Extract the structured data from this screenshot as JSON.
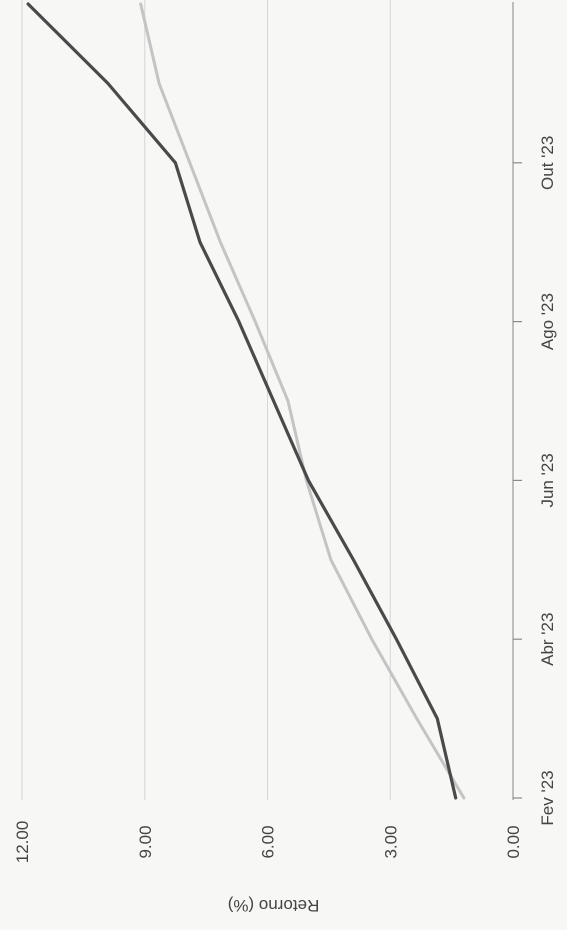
{
  "chart_data": {
    "type": "line",
    "title": "",
    "ylabel": "Retorno (%)",
    "xlabel": "",
    "ylim": [
      0,
      12
    ],
    "yticks": [
      0,
      3,
      6,
      9,
      12
    ],
    "ytick_labels": [
      "0.00",
      "3.00",
      "6.00",
      "9.00",
      "12.00"
    ],
    "xtick_labels": [
      "Fev '23",
      "Abr '23",
      "Jun '23",
      "Ago '23",
      "Out '23"
    ],
    "grid": true,
    "legend": "none",
    "series": [
      {
        "color": "#4a4a4a",
        "points": [
          {
            "month": 0.0,
            "value": 1.4
          },
          {
            "month": 1.0,
            "value": 1.85
          },
          {
            "month": 2.0,
            "value": 2.85
          },
          {
            "month": 3.0,
            "value": 3.9
          },
          {
            "month": 4.0,
            "value": 5.0
          },
          {
            "month": 5.0,
            "value": 5.85
          },
          {
            "month": 6.0,
            "value": 6.7
          },
          {
            "month": 7.0,
            "value": 7.65
          },
          {
            "month": 8.0,
            "value": 8.25
          },
          {
            "month": 9.0,
            "value": 9.9
          },
          {
            "month": 10.0,
            "value": 11.85
          }
        ]
      },
      {
        "color": "#c4c4c4",
        "points": [
          {
            "month": 0.0,
            "value": 1.2
          },
          {
            "month": 1.0,
            "value": 2.35
          },
          {
            "month": 2.0,
            "value": 3.45
          },
          {
            "month": 3.0,
            "value": 4.45
          },
          {
            "month": 4.0,
            "value": 5.05
          },
          {
            "month": 5.0,
            "value": 5.5
          },
          {
            "month": 6.0,
            "value": 6.3
          },
          {
            "month": 7.0,
            "value": 7.15
          },
          {
            "month": 8.0,
            "value": 7.9
          },
          {
            "month": 9.0,
            "value": 8.65
          },
          {
            "month": 10.0,
            "value": 9.1
          }
        ]
      }
    ]
  }
}
